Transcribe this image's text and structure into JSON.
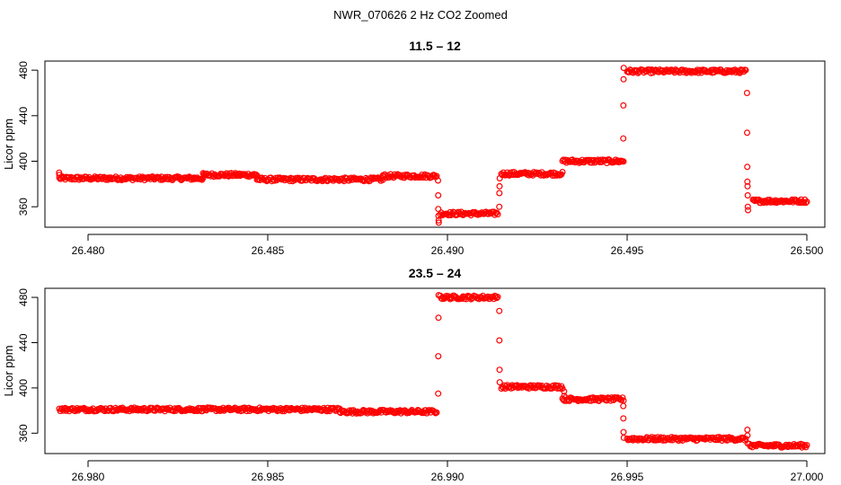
{
  "figure": {
    "title": "NWR_070626  2 Hz CO2 Zoomed"
  },
  "chart_data": [
    {
      "type": "scatter",
      "title": "11.5 – 12",
      "xlabel": "",
      "ylabel": "Licor ppm",
      "xlim": [
        26.4788,
        26.5005
      ],
      "ylim": [
        342,
        488
      ],
      "xticks": [
        "26.480",
        "26.485",
        "26.490",
        "26.495",
        "26.500"
      ],
      "xtick_values": [
        26.48,
        26.485,
        26.49,
        26.495,
        26.5
      ],
      "yticks": [
        "360",
        "400",
        "440",
        "480"
      ],
      "ytick_values": [
        360,
        400,
        440,
        480
      ],
      "grid": false,
      "marker": "open-circle",
      "color": "#ff0000",
      "segments": [
        {
          "x0": 26.4792,
          "x1": 26.4832,
          "y": 385
        },
        {
          "x0": 26.4832,
          "x1": 26.4847,
          "y": 388
        },
        {
          "x0": 26.4847,
          "x1": 26.4882,
          "y": 384
        },
        {
          "x0": 26.4882,
          "x1": 26.4897,
          "y": 387
        },
        {
          "x0": 26.4898,
          "x1": 26.4914,
          "y": 354
        },
        {
          "x0": 26.4915,
          "x1": 26.4932,
          "y": 389
        },
        {
          "x0": 26.4932,
          "x1": 26.4949,
          "y": 400
        },
        {
          "x0": 26.495,
          "x1": 26.4983,
          "y": 479
        },
        {
          "x0": 26.4985,
          "x1": 26.5,
          "y": 365
        }
      ],
      "transitions": [
        {
          "x": 26.4792,
          "ys": [
            390,
            388
          ]
        },
        {
          "x": 26.48975,
          "ys": [
            383,
            370,
            358,
            352,
            348,
            346
          ]
        },
        {
          "x": 26.49145,
          "ys": [
            360,
            372,
            378,
            385
          ]
        },
        {
          "x": 26.4949,
          "ys": [
            420,
            449,
            472,
            482
          ]
        },
        {
          "x": 26.49835,
          "ys": [
            460,
            425,
            395,
            382,
            378,
            370,
            360,
            357
          ]
        }
      ]
    },
    {
      "type": "scatter",
      "title": "23.5 – 24",
      "xlabel": "",
      "ylabel": "Licor ppm",
      "xlim": [
        26.9788,
        27.0005
      ],
      "ylim": [
        342,
        488
      ],
      "xticks": [
        "26.980",
        "26.985",
        "26.990",
        "26.995",
        "27.000"
      ],
      "xtick_values": [
        26.98,
        26.985,
        26.99,
        26.995,
        27.0
      ],
      "yticks": [
        "360",
        "400",
        "440",
        "480"
      ],
      "ytick_values": [
        360,
        400,
        440,
        480
      ],
      "grid": false,
      "marker": "open-circle",
      "color": "#ff0000",
      "segments": [
        {
          "x0": 26.9792,
          "x1": 26.987,
          "y": 381
        },
        {
          "x0": 26.987,
          "x1": 26.9897,
          "y": 379
        },
        {
          "x0": 26.9898,
          "x1": 26.9914,
          "y": 480
        },
        {
          "x0": 26.9915,
          "x1": 26.9932,
          "y": 401
        },
        {
          "x0": 26.9932,
          "x1": 26.9949,
          "y": 390
        },
        {
          "x0": 26.995,
          "x1": 26.9983,
          "y": 355
        },
        {
          "x0": 26.9984,
          "x1": 27.0,
          "y": 349
        }
      ],
      "transitions": [
        {
          "x": 26.98975,
          "ys": [
            395,
            428,
            462,
            482
          ]
        },
        {
          "x": 26.99145,
          "ys": [
            468,
            442,
            416,
            405
          ]
        },
        {
          "x": 26.99325,
          "ys": [
            397,
            393
          ]
        },
        {
          "x": 26.9949,
          "ys": [
            384,
            373,
            361,
            356
          ]
        },
        {
          "x": 26.99835,
          "ys": [
            363,
            358,
            351
          ]
        }
      ]
    }
  ]
}
